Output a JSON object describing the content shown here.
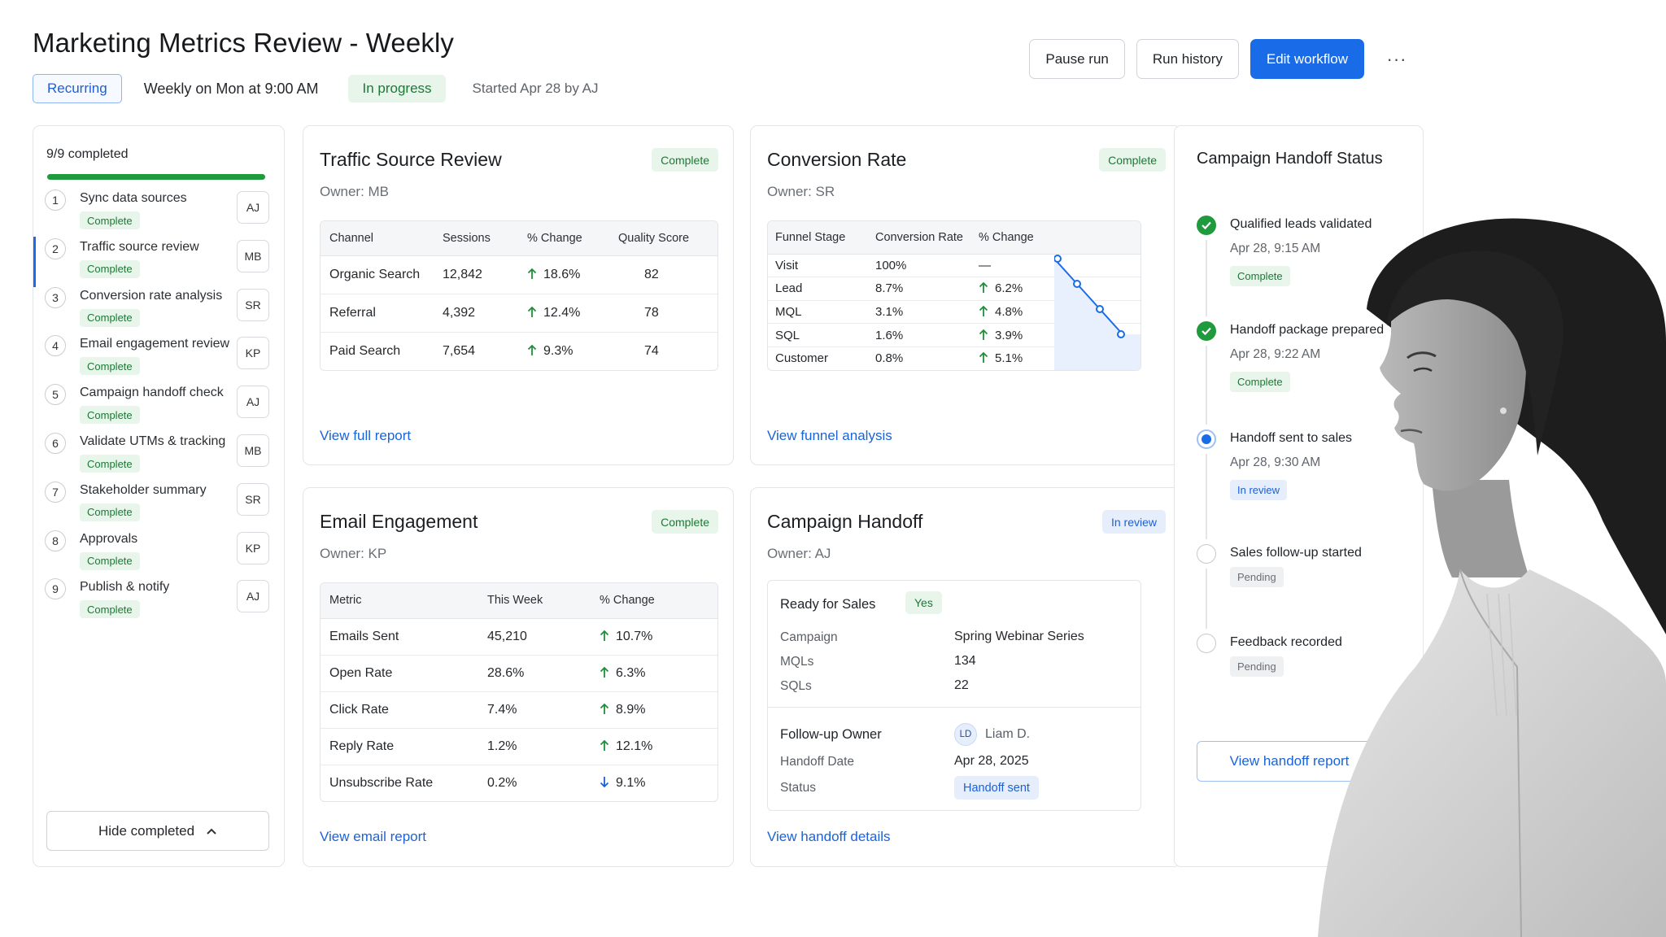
{
  "header": {
    "title": "Marketing Metrics Review - Weekly",
    "recurring_label": "Recurring",
    "schedule": "Weekly on Mon at 9:00 AM",
    "status": "In progress",
    "started": "Started Apr 28 by AJ",
    "actions": {
      "pause": "Pause run",
      "history": "Run history",
      "edit": "Edit workflow",
      "more": "···"
    }
  },
  "checklist": {
    "progress_text": "9/9 completed",
    "progress_fraction": 1.0,
    "steps": [
      {
        "num": "1",
        "label": "Sync data sources",
        "status": "Complete",
        "owner": "AJ"
      },
      {
        "num": "2",
        "label": "Traffic source review",
        "status": "Complete",
        "owner": "MB"
      },
      {
        "num": "3",
        "label": "Conversion rate analysis",
        "status": "Complete",
        "owner": "SR"
      },
      {
        "num": "4",
        "label": "Email engagement review",
        "status": "Complete",
        "owner": "KP"
      },
      {
        "num": "5",
        "label": "Campaign handoff check",
        "status": "Complete",
        "owner": "AJ"
      },
      {
        "num": "6",
        "label": "Validate UTMs & tracking",
        "status": "Complete",
        "owner": "MB"
      },
      {
        "num": "7",
        "label": "Stakeholder summary",
        "status": "Complete",
        "owner": "SR"
      },
      {
        "num": "8",
        "label": "Approvals",
        "status": "Complete",
        "owner": "KP"
      },
      {
        "num": "9",
        "label": "Publish & notify",
        "status": "Complete",
        "owner": "AJ"
      }
    ],
    "hide_label": "Hide completed"
  },
  "traffic": {
    "title": "Traffic Source Review",
    "owner": "Owner:  MB",
    "badge": "Complete",
    "headers": [
      "Channel",
      "Sessions",
      "% Change",
      "Quality Score"
    ],
    "rows": [
      {
        "channel": "Organic Search",
        "sessions": "12,842",
        "change": "18.6%",
        "score": "82"
      },
      {
        "channel": "Referral",
        "sessions": "4,392",
        "change": "12.4%",
        "score": "78"
      },
      {
        "channel": "Paid Search",
        "sessions": "7,654",
        "change": "9.3%",
        "score": "74"
      }
    ],
    "link": "View full report"
  },
  "conversion": {
    "title": "Conversion Rate",
    "owner": "Owner:  SR",
    "badge": "Complete",
    "headers": [
      "Funnel Stage",
      "Conversion Rate",
      "% Change"
    ],
    "rows": [
      {
        "stage": "Visit",
        "rate": "100%",
        "change": "—"
      },
      {
        "stage": "Lead",
        "rate": "8.7%",
        "change": "6.2%"
      },
      {
        "stage": "MQL",
        "rate": "3.1%",
        "change": "4.8%"
      },
      {
        "stage": "SQL",
        "rate": "1.6%",
        "change": "3.9%"
      },
      {
        "stage": "Customer",
        "rate": "0.8%",
        "change": "5.1%"
      }
    ],
    "link": "View funnel analysis"
  },
  "email": {
    "title": "Email Engagement",
    "owner": "Owner:  KP",
    "badge": "Complete",
    "headers": [
      "Metric",
      "This Week",
      "% Change"
    ],
    "rows": [
      {
        "metric": "Emails Sent",
        "value": "45,210",
        "change": "10.7%"
      },
      {
        "metric": "Open Rate",
        "value": "28.6%",
        "change": "6.3%"
      },
      {
        "metric": "Click Rate",
        "value": "7.4%",
        "change": "8.9%"
      },
      {
        "metric": "Reply Rate",
        "value": "1.2%",
        "change": "12.1%"
      },
      {
        "metric": "Unsubscribe Rate",
        "value": "0.2%",
        "change": "9.1%"
      }
    ],
    "link": "View email report"
  },
  "handoff": {
    "title": "Campaign Handoff",
    "owner": "Owner:  AJ",
    "badge": "In review",
    "ready_label": "Ready for Sales",
    "ready_value": "Yes",
    "campaign_label": "Campaign",
    "campaign_value": "Spring Webinar Series",
    "mqls_label": "MQLs",
    "mqls_value": "134",
    "sqls_label": "SQLs",
    "sqls_value": "22",
    "owner_label": "Follow-up Owner",
    "owner_initials": "LD",
    "owner_name": "Liam D.",
    "date_label": "Handoff Date",
    "date_value": "Apr 28, 2025",
    "status_label": "Status",
    "status_value": "Handoff sent",
    "link": "View handoff details"
  },
  "timeline": {
    "title": "Campaign Handoff Status",
    "items": [
      {
        "title": "Qualified leads validated",
        "time": "Apr 28, 9:15 AM",
        "badge": "Complete",
        "state": "done"
      },
      {
        "title": "Handoff package prepared",
        "time": "Apr 28, 9:22 AM",
        "badge": "Complete",
        "state": "done"
      },
      {
        "title": "Handoff sent to sales",
        "time": "Apr 28, 9:30 AM",
        "badge": "In review",
        "state": "active"
      },
      {
        "title": "Sales follow-up started",
        "time": "",
        "badge": "Pending",
        "state": "pending"
      },
      {
        "title": "Feedback recorded",
        "time": "",
        "badge": "Pending",
        "state": "pending"
      }
    ],
    "button": "View handoff report"
  }
}
